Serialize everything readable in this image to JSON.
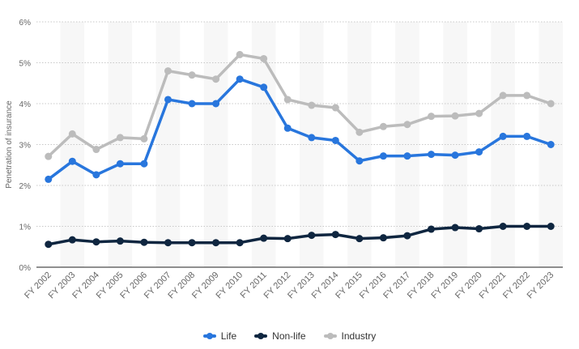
{
  "chart_data": {
    "type": "line",
    "ylabel": "Penetration of insurance",
    "xlabel": "",
    "ylim": [
      0,
      6
    ],
    "yticks": [
      "0%",
      "1%",
      "2%",
      "3%",
      "4%",
      "5%",
      "6%"
    ],
    "categories": [
      "FY 2002",
      "FY 2003",
      "FY 2004",
      "FY 2005",
      "FY 2006",
      "FY 2007",
      "FY 2008",
      "FY 2009",
      "FY 2010",
      "FY 2011",
      "FY 2012",
      "FY 2013",
      "FY 2014",
      "FY 2015",
      "FY 2016",
      "FY 2017",
      "FY 2018",
      "FY 2019",
      "FY 2020",
      "FY 2021",
      "FY 2022",
      "FY 2023"
    ],
    "series": [
      {
        "name": "Life",
        "color": "#2876dd",
        "values": [
          2.15,
          2.59,
          2.26,
          2.53,
          2.53,
          4.1,
          4.0,
          4.0,
          4.6,
          4.4,
          3.4,
          3.17,
          3.1,
          2.6,
          2.72,
          2.72,
          2.76,
          2.74,
          2.82,
          3.2,
          3.2,
          3.0
        ]
      },
      {
        "name": "Non-life",
        "color": "#0f2640",
        "values": [
          0.56,
          0.67,
          0.62,
          0.64,
          0.61,
          0.6,
          0.6,
          0.6,
          0.6,
          0.71,
          0.7,
          0.78,
          0.8,
          0.7,
          0.72,
          0.77,
          0.93,
          0.97,
          0.94,
          1.0,
          1.0,
          1.0
        ]
      },
      {
        "name": "Industry",
        "color": "#bcbcbc",
        "values": [
          2.71,
          3.26,
          2.88,
          3.17,
          3.14,
          4.8,
          4.7,
          4.6,
          5.2,
          5.1,
          4.1,
          3.96,
          3.9,
          3.3,
          3.44,
          3.49,
          3.69,
          3.7,
          3.76,
          4.2,
          4.2,
          4.0
        ]
      }
    ],
    "grid": true,
    "legend_position": "bottom"
  }
}
